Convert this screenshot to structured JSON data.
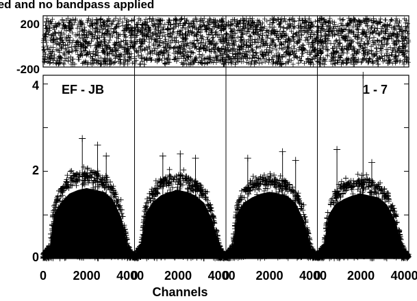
{
  "title": "ied and no bandpass applied",
  "chart_data": [
    {
      "type": "scatter",
      "panel": "phase",
      "ylabel": "",
      "yticks": [
        200,
        -200
      ],
      "ylim": [
        -200,
        200
      ],
      "xlim": [
        0,
        4200
      ],
      "subbands": 4,
      "marker": "+",
      "note": "phase points scattered uniformly between -180 and 180 in every subband"
    },
    {
      "type": "scatter",
      "panel": "amplitude",
      "baseline_label": "EF - JB",
      "corr_label": "1 - 7",
      "xlabel": "Channels",
      "xlim": [
        0,
        4200
      ],
      "ylim": [
        0,
        4.2
      ],
      "xticks": [
        0,
        2000,
        4000
      ],
      "yticks": [
        0,
        2,
        4
      ],
      "subbands": 4,
      "marker": "+",
      "series": [
        {
          "subband": 1,
          "envelope_x": [
            0,
            300,
            500,
            800,
            1200,
            1600,
            2000,
            2400,
            2800,
            3200,
            3600,
            3900,
            4100
          ],
          "envelope_y": [
            0.1,
            0.3,
            1.2,
            1.5,
            1.75,
            1.85,
            1.9,
            1.85,
            1.8,
            1.6,
            1.1,
            0.3,
            0.1
          ],
          "peaks": [
            [
              1800,
              2.75
            ],
            [
              2500,
              2.6
            ],
            [
              2900,
              2.35
            ]
          ]
        },
        {
          "subband": 2,
          "envelope_x": [
            0,
            300,
            500,
            800,
            1200,
            1600,
            2000,
            2400,
            2800,
            3200,
            3600,
            3900,
            4100
          ],
          "envelope_y": [
            0.1,
            0.3,
            1.2,
            1.5,
            1.7,
            1.8,
            1.85,
            1.8,
            1.7,
            1.5,
            1.0,
            0.3,
            0.1
          ],
          "peaks": [
            [
              1300,
              2.35
            ],
            [
              2100,
              2.4
            ],
            [
              2800,
              2.3
            ]
          ]
        },
        {
          "subband": 3,
          "envelope_x": [
            0,
            300,
            500,
            800,
            1200,
            1600,
            2000,
            2400,
            2800,
            3200,
            3600,
            3900,
            4100
          ],
          "envelope_y": [
            0.1,
            0.3,
            1.2,
            1.5,
            1.65,
            1.75,
            1.8,
            1.75,
            1.7,
            1.5,
            1.0,
            0.3,
            0.1
          ],
          "peaks": [
            [
              1000,
              2.3
            ],
            [
              2600,
              2.45
            ],
            [
              3200,
              2.25
            ]
          ]
        },
        {
          "subband": 4,
          "envelope_x": [
            0,
            300,
            500,
            800,
            1200,
            1600,
            2000,
            2400,
            2800,
            3200,
            3600,
            3900,
            4100
          ],
          "envelope_y": [
            0.1,
            0.3,
            1.15,
            1.45,
            1.6,
            1.7,
            1.75,
            1.7,
            1.65,
            1.45,
            1.0,
            0.3,
            0.1
          ],
          "peaks": [
            [
              900,
              2.5
            ],
            [
              2100,
              4.2
            ],
            [
              2500,
              2.2
            ]
          ]
        }
      ]
    }
  ]
}
